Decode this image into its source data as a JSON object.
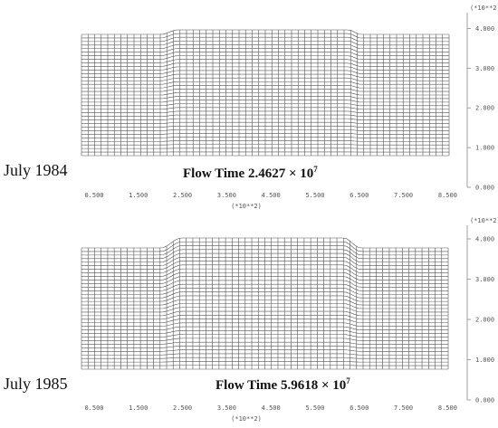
{
  "panels": [
    {
      "label": "July 1984",
      "flow_time_prefix": "Flow Time 2.4627 × 10",
      "flow_time_exp": "7",
      "x_scale": "(*10**2)",
      "y_scale": "(*10**2)",
      "x_ticks": [
        "0.500",
        "1.500",
        "2.500",
        "3.500",
        "4.500",
        "5.500",
        "6.500",
        "7.500",
        "8.500"
      ],
      "y_ticks": [
        "0.000",
        "1.000",
        "2.000",
        "3.000",
        "4.000"
      ]
    },
    {
      "label": "July 1985",
      "flow_time_prefix": "Flow Time 5.9618 × 10",
      "flow_time_exp": "7",
      "x_scale": "(*10**2)",
      "y_scale": "(*10**2)",
      "x_ticks": [
        "0.500",
        "1.500",
        "2.500",
        "3.500",
        "4.500",
        "5.500",
        "6.500",
        "7.500",
        "8.500"
      ],
      "y_ticks": [
        "0.000",
        "1.000",
        "2.000",
        "3.000",
        "4.000"
      ]
    }
  ],
  "colors": {
    "mesh": "#555555",
    "axis": "#888888",
    "text": "#111111"
  }
}
